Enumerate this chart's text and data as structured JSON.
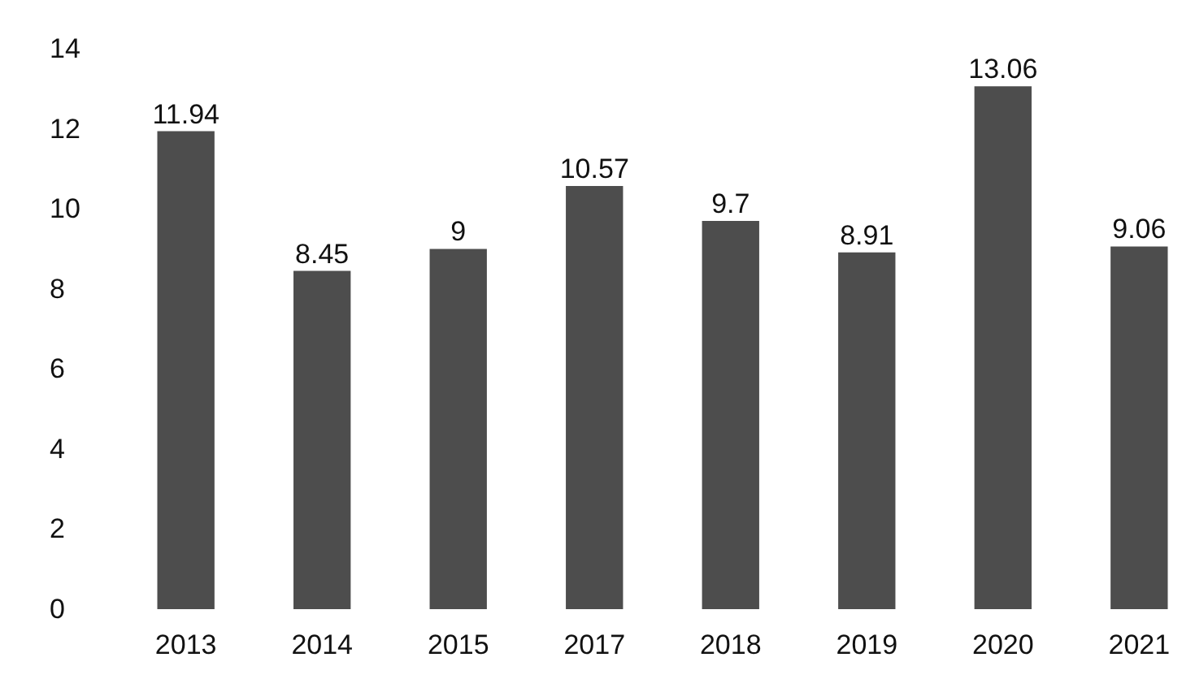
{
  "chart_data": {
    "type": "bar",
    "categories": [
      "2013",
      "2014",
      "2015",
      "2017",
      "2018",
      "2019",
      "2020",
      "2021"
    ],
    "values": [
      11.94,
      8.45,
      9,
      10.57,
      9.7,
      8.91,
      13.06,
      9.06
    ],
    "color": "#4d4d4d",
    "ylim": [
      0,
      14
    ],
    "yticks": [
      0,
      2,
      4,
      6,
      8,
      10,
      12,
      14
    ],
    "grid": false,
    "data_labels": true
  }
}
